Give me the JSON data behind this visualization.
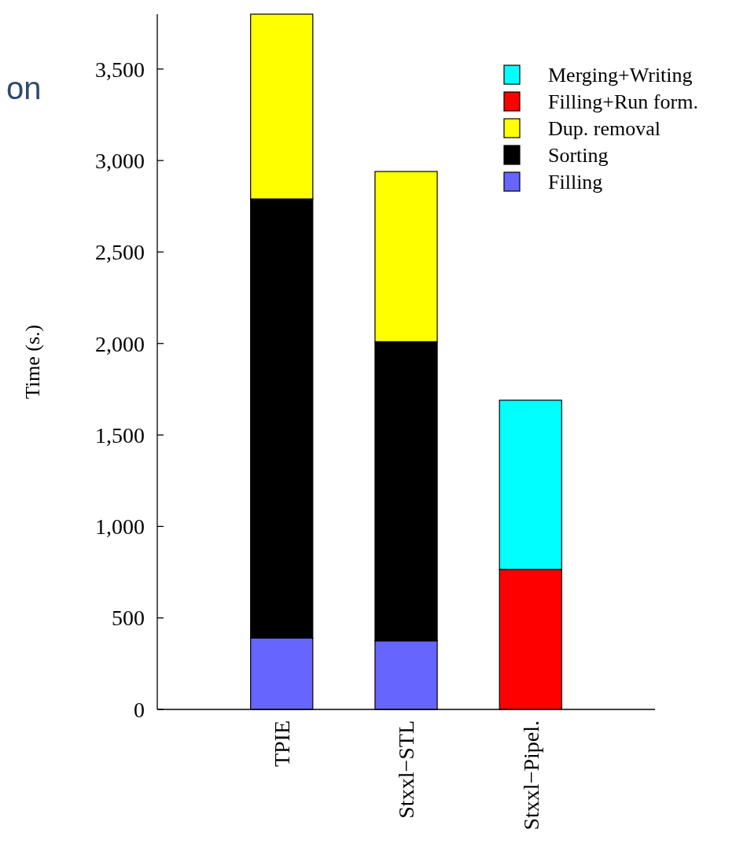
{
  "chart_data": {
    "type": "bar",
    "stacked": true,
    "ylabel": "Time (s.)",
    "categories": [
      "TPIE",
      "Stxxl−STL",
      "Stxxl−Pipel."
    ],
    "series": [
      {
        "name": "Filling",
        "color": "#6666ff",
        "values": [
          390,
          375,
          null
        ]
      },
      {
        "name": "Sorting",
        "color": "#000000",
        "values": [
          2400,
          1635,
          null
        ]
      },
      {
        "name": "Dup. removal",
        "color": "#ffff00",
        "values": [
          1010,
          930,
          null
        ]
      },
      {
        "name": "Filling+Run form.",
        "color": "#ff0000",
        "values": [
          null,
          null,
          765
        ]
      },
      {
        "name": "Merging+Writing",
        "color": "#00ffff",
        "values": [
          null,
          null,
          925
        ]
      }
    ],
    "ylim": [
      0,
      3800
    ],
    "yticks": [
      0,
      500,
      {
        "value": 1000,
        "label": "1,000"
      },
      {
        "value": 1500,
        "label": "1,500"
      },
      {
        "value": 2000,
        "label": "2,000"
      },
      {
        "value": 2500,
        "label": "2,500"
      },
      {
        "value": 3000,
        "label": "3,000"
      },
      {
        "value": 3500,
        "label": "3,500"
      }
    ],
    "legend": "top right",
    "grid": false,
    "annotations": [
      "on"
    ]
  }
}
